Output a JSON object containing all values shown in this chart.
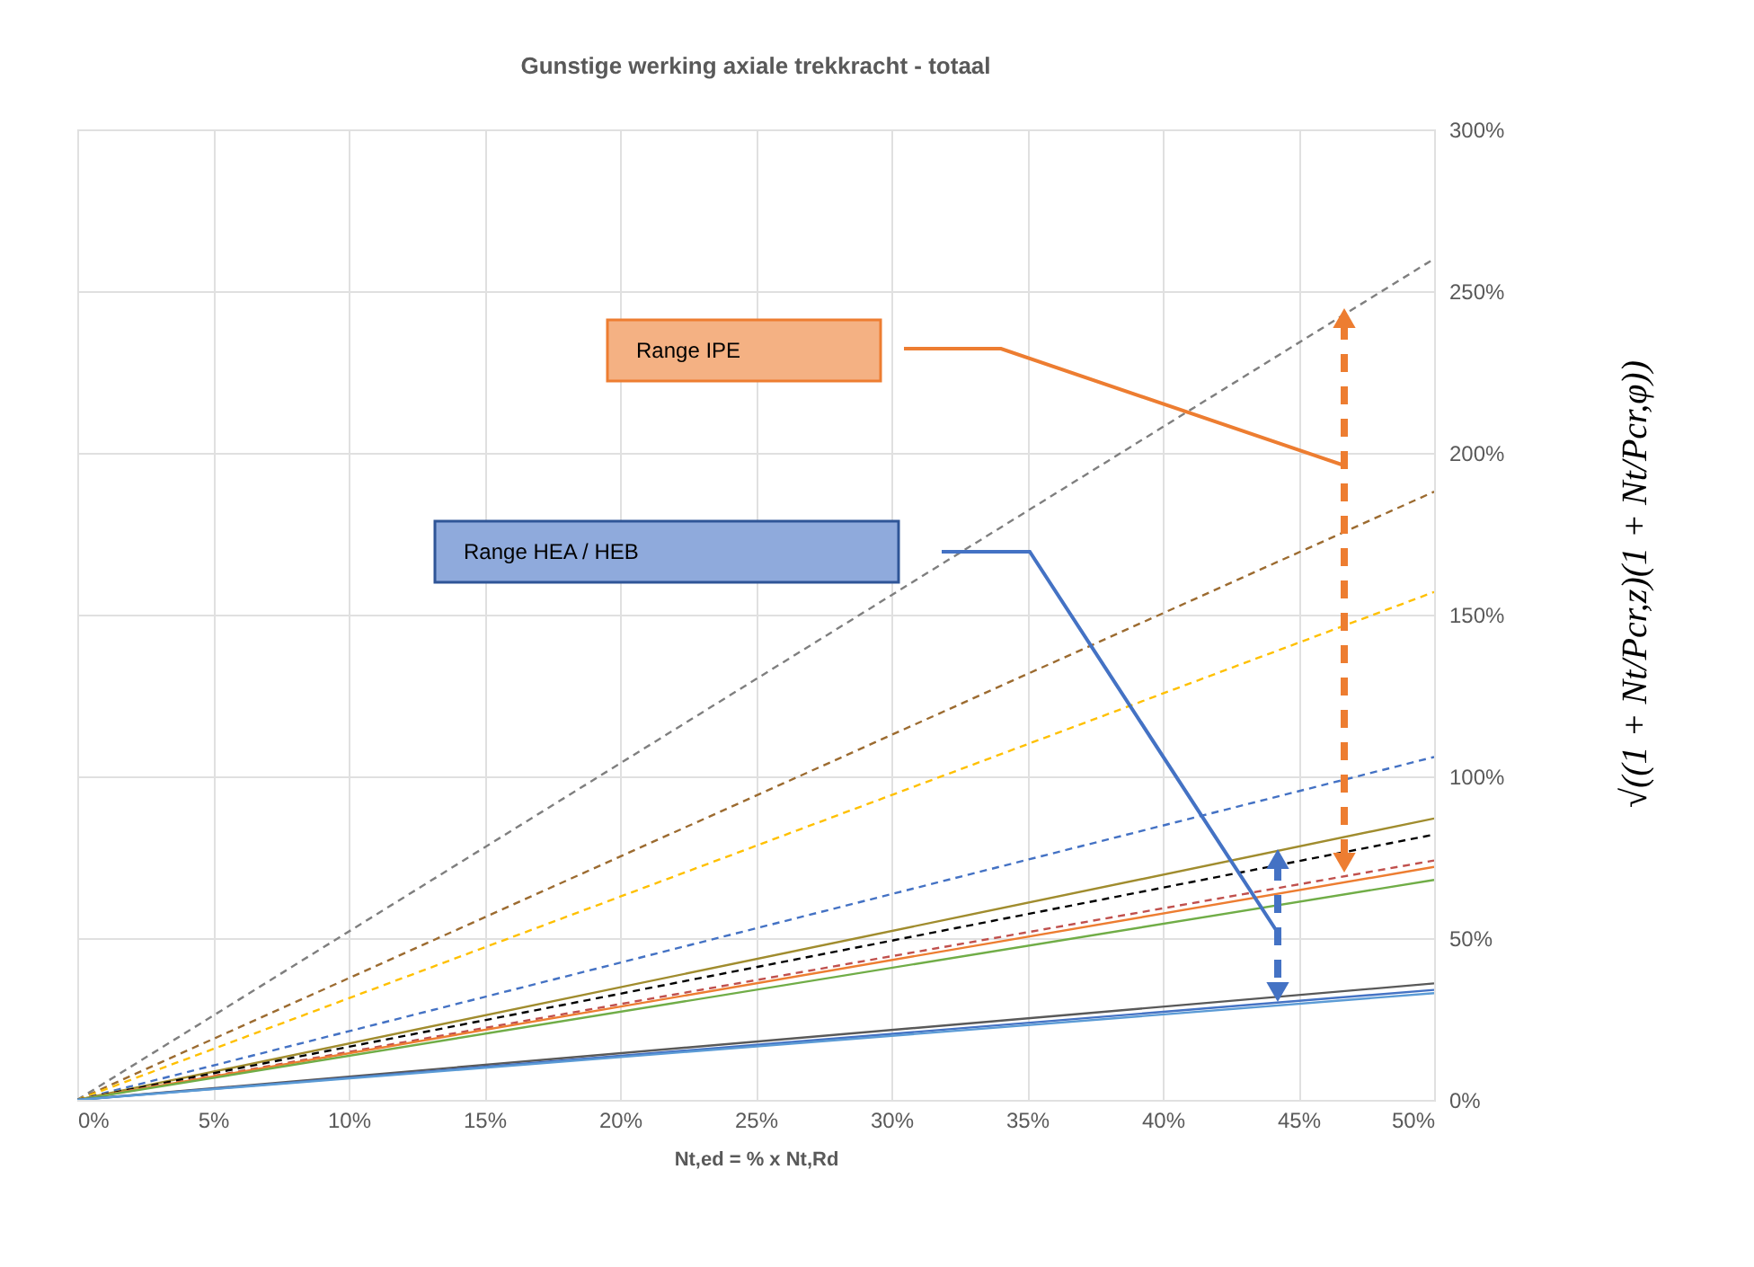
{
  "chart_data": {
    "type": "line",
    "title": "Gunstige werking axiale trekkracht - totaal",
    "xlabel": "Nt,ed = % x Nt,Rd",
    "xlim": [
      0,
      50
    ],
    "ylim": [
      0,
      300
    ],
    "xticks": [
      {
        "value": 0,
        "label": "0%"
      },
      {
        "value": 5,
        "label": "5%"
      },
      {
        "value": 10,
        "label": "10%"
      },
      {
        "value": 15,
        "label": "15%"
      },
      {
        "value": 20,
        "label": "20%"
      },
      {
        "value": 25,
        "label": "25%"
      },
      {
        "value": 30,
        "label": "30%"
      },
      {
        "value": 35,
        "label": "35%"
      },
      {
        "value": 40,
        "label": "40%"
      },
      {
        "value": 45,
        "label": "45%"
      },
      {
        "value": 50,
        "label": "50%"
      }
    ],
    "yticks": [
      {
        "value": 0,
        "label": "0%"
      },
      {
        "value": 50,
        "label": "50%"
      },
      {
        "value": 100,
        "label": "100%"
      },
      {
        "value": 150,
        "label": "150%"
      },
      {
        "value": 200,
        "label": "200%"
      },
      {
        "value": 250,
        "label": "250%"
      },
      {
        "value": 300,
        "label": "300%"
      }
    ],
    "grid": true,
    "legend": false,
    "marker": "none",
    "x": [
      0,
      50
    ],
    "series": [
      {
        "color": "#7f7f7f",
        "line_style": "dashed",
        "values": [
          0,
          260
        ]
      },
      {
        "color": "#9c6b30",
        "line_style": "dashed",
        "values": [
          0,
          188
        ]
      },
      {
        "color": "#ffc000",
        "line_style": "dashed",
        "values": [
          0,
          157
        ]
      },
      {
        "color": "#4472c4",
        "line_style": "dashed",
        "values": [
          0,
          106
        ]
      },
      {
        "color": "#a08c2e",
        "line_style": "solid",
        "values": [
          0,
          87
        ]
      },
      {
        "color": "#000000",
        "line_style": "dashed",
        "values": [
          0,
          82
        ]
      },
      {
        "color": "#c0504d",
        "line_style": "dashed",
        "values": [
          0,
          74
        ]
      },
      {
        "color": "#ed7d31",
        "line_style": "solid",
        "values": [
          0,
          72
        ]
      },
      {
        "color": "#70ad47",
        "line_style": "solid",
        "values": [
          0,
          68
        ]
      },
      {
        "color": "#595959",
        "line_style": "solid",
        "values": [
          0,
          36
        ]
      },
      {
        "color": "#4472c4",
        "line_style": "solid",
        "values": [
          0,
          34
        ]
      },
      {
        "color": "#5b9bd5",
        "line_style": "solid",
        "values": [
          0,
          33
        ]
      }
    ],
    "annotations": [
      "Range IPE",
      "Range HEA / HEB",
      "√((1 + Nt/Pcr,z)(1 + Nt/Pcr,φ))"
    ]
  }
}
